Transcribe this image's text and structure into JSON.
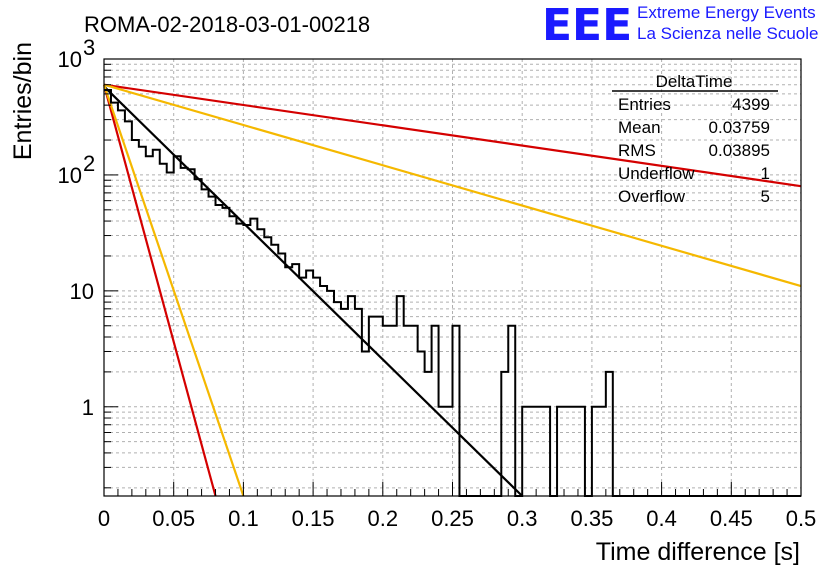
{
  "chart_data": {
    "type": "line",
    "title": "ROMA-02-2018-03-01-00218",
    "xlabel": "Time difference [s]",
    "ylabel": "Entries/bin",
    "xlim": [
      0,
      0.5
    ],
    "ylim": [
      0.17,
      1000
    ],
    "yscale": "log",
    "grid": true,
    "x_ticks": [
      "0",
      "0.05",
      "0.1",
      "0.15",
      "0.2",
      "0.25",
      "0.3",
      "0.35",
      "0.4",
      "0.45",
      "0.5"
    ],
    "y_ticks": [
      "1",
      "10"
    ],
    "y_tick_sup": [
      {
        "base": "10",
        "exp": "2"
      },
      {
        "base": "10",
        "exp": "3"
      }
    ],
    "histogram": {
      "name": "DeltaTime",
      "bin_width": 0.005,
      "values": [
        540,
        420,
        360,
        290,
        200,
        175,
        145,
        165,
        125,
        105,
        145,
        115,
        112,
        92,
        75,
        65,
        55,
        52,
        44,
        38,
        37,
        42,
        34,
        29,
        25,
        21,
        16,
        17,
        13,
        15,
        13,
        11,
        10,
        8,
        7,
        9,
        7,
        3,
        6,
        6,
        5,
        5,
        9,
        5,
        5,
        3,
        2,
        5,
        1,
        1,
        5,
        0,
        0,
        0,
        0,
        0,
        0,
        2,
        5,
        0,
        1,
        1,
        1,
        1,
        0,
        1,
        1,
        1,
        1,
        0,
        1,
        1,
        2,
        0,
        0,
        0,
        0,
        0,
        0,
        0,
        0,
        0,
        0,
        0,
        0,
        0,
        0,
        0,
        0,
        0,
        0,
        0,
        0,
        0,
        0,
        0,
        0,
        0,
        0,
        0
      ]
    },
    "fits": [
      {
        "color": "#000000",
        "y0": 580,
        "x": [
          0,
          0.3
        ],
        "y": [
          580,
          0.17
        ]
      },
      {
        "color": "#d40000",
        "y0": 600,
        "x": [
          0,
          0.5
        ],
        "y": [
          600,
          80
        ]
      },
      {
        "color": "#f5b800",
        "y0": 600,
        "x": [
          0,
          0.5
        ],
        "y": [
          600,
          11
        ]
      },
      {
        "color": "#d40000",
        "y0": 600,
        "x": [
          0,
          0.08
        ],
        "y": [
          600,
          0.17
        ]
      },
      {
        "color": "#f5b800",
        "y0": 600,
        "x": [
          0,
          0.1
        ],
        "y": [
          600,
          0.17
        ]
      }
    ],
    "stats": {
      "title": "DeltaTime",
      "rows": [
        {
          "label": "Entries",
          "value": "4399"
        },
        {
          "label": "Mean",
          "value": "0.03759"
        },
        {
          "label": "RMS",
          "value": "0.03895"
        },
        {
          "label": "Underflow",
          "value": "1"
        },
        {
          "label": "Overflow",
          "value": "5"
        }
      ]
    }
  },
  "logo": {
    "mark": "EEE",
    "line1": "Extreme Energy Events",
    "line2": "La Scienza nelle Scuole"
  },
  "colors": {
    "frame": "#000000",
    "grid": "#b0b0b0",
    "logo": "#1a1aff"
  }
}
